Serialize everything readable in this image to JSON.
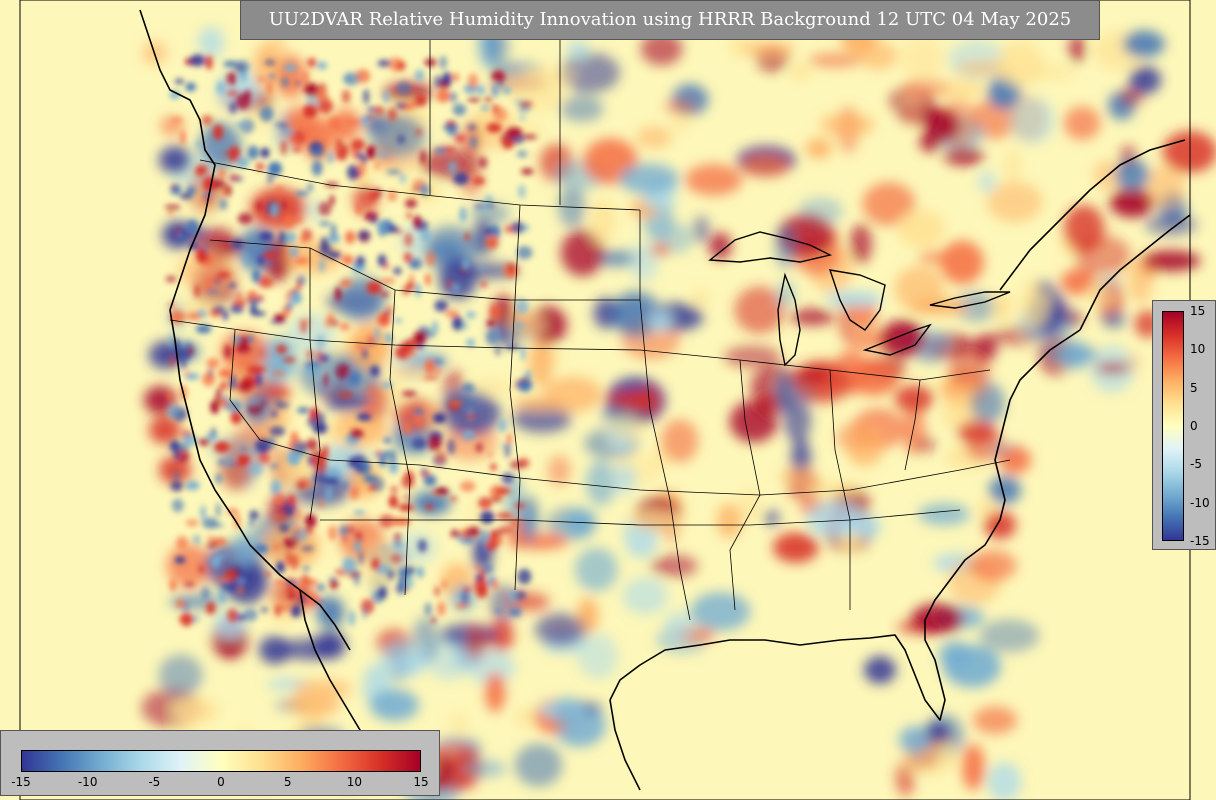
{
  "title": "UU2DVAR Relative Humidity Innovation using HRRR Background 12 UTC 04 May 2025",
  "colorbar": {
    "min": -15,
    "max": 15,
    "ticks": [
      "-15",
      "-10",
      "-5",
      "0",
      "5",
      "10",
      "15"
    ],
    "colors": [
      "#313695",
      "#4575b4",
      "#74add1",
      "#abd9e9",
      "#e0f3f8",
      "#ffffbf",
      "#fee090",
      "#fdae61",
      "#f46d43",
      "#d73027",
      "#a50026"
    ]
  },
  "map": {
    "background_color": "#fdf7b9",
    "region": "CONUS"
  }
}
